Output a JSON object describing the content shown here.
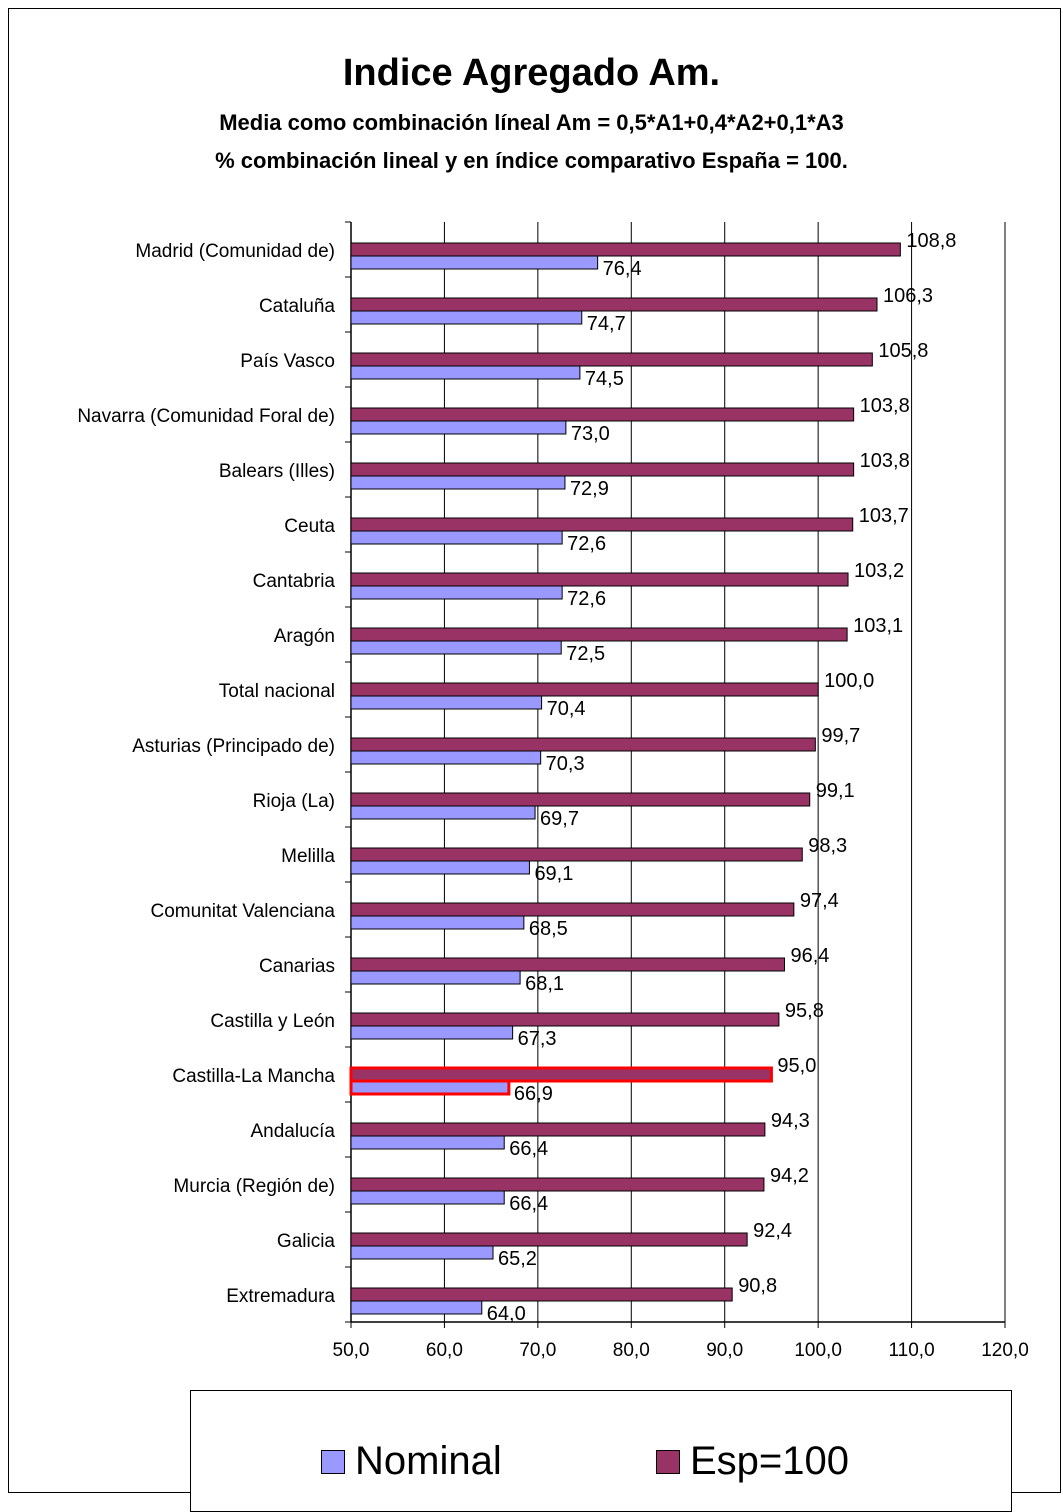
{
  "chart_data": {
    "type": "bar",
    "orientation": "horizontal",
    "title": "Indice Agregado Am.",
    "subtitle_1": "Media como combinación líneal Am = 0,5*A1+0,4*A2+0,1*A3",
    "subtitle_2": "% combinación lineal y en  índice comparativo España = 100.",
    "categories": [
      "Madrid (Comunidad de)",
      "Cataluña",
      "País Vasco",
      "Navarra (Comunidad Foral de)",
      "Balears (Illes)",
      "Ceuta",
      "Cantabria",
      "Aragón",
      "Total nacional",
      "Asturias (Principado de)",
      "Rioja (La)",
      "Melilla",
      "Comunitat Valenciana",
      "Canarias",
      "Castilla y León",
      "Castilla-La Mancha",
      "Andalucía",
      "Murcia (Región de)",
      "Galicia",
      "Extremadura"
    ],
    "series": [
      {
        "name": "Esp=100",
        "color": "#993366",
        "values": [
          108.8,
          106.3,
          105.8,
          103.8,
          103.8,
          103.7,
          103.2,
          103.1,
          100.0,
          99.7,
          99.1,
          98.3,
          97.4,
          96.4,
          95.8,
          95.0,
          94.3,
          94.2,
          92.4,
          90.8
        ],
        "labels": [
          "108,8",
          "106,3",
          "105,8",
          "103,8",
          "103,8",
          "103,7",
          "103,2",
          "103,1",
          "100,0",
          "99,7",
          "99,1",
          "98,3",
          "97,4",
          "96,4",
          "95,8",
          "95,0",
          "94,3",
          "94,2",
          "92,4",
          "90,8"
        ]
      },
      {
        "name": "Nominal",
        "color": "#9999ff",
        "values": [
          76.4,
          74.7,
          74.5,
          73.0,
          72.9,
          72.6,
          72.6,
          72.5,
          70.4,
          70.3,
          69.7,
          69.1,
          68.5,
          68.1,
          67.3,
          66.9,
          66.4,
          66.4,
          65.2,
          64.0
        ],
        "labels": [
          "76,4",
          "74,7",
          "74,5",
          "73,0",
          "72,9",
          "72,6",
          "72,6",
          "72,5",
          "70,4",
          "70,3",
          "69,7",
          "69,1",
          "68,5",
          "68,1",
          "67,3",
          "66,9",
          "66,4",
          "66,4",
          "65,2",
          "64,0"
        ]
      }
    ],
    "highlighted_category": "Castilla-La Mancha",
    "highlight_color": "#ff0000",
    "xlim": [
      50,
      120
    ],
    "xticks": [
      50,
      60,
      70,
      80,
      90,
      100,
      110,
      120
    ],
    "xtick_labels": [
      "50,0",
      "60,0",
      "70,0",
      "80,0",
      "90,0",
      "100,0",
      "110,0",
      "120,0"
    ],
    "grid": "vertical",
    "legend_position": "bottom",
    "xlabel": "",
    "ylabel": ""
  },
  "legend": {
    "nominal_label": "Nominal",
    "esp_label": "Esp=100"
  }
}
